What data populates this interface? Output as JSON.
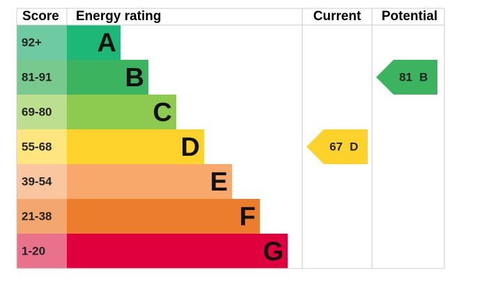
{
  "header": {
    "score": "Score",
    "rating": "Energy rating",
    "current": "Current",
    "potential": "Potential"
  },
  "bands": [
    {
      "score": "92+",
      "letter": "A",
      "color": "#1db777",
      "score_color": "#6ecaa1"
    },
    {
      "score": "81-91",
      "letter": "B",
      "color": "#3bb35f",
      "score_color": "#78c98d"
    },
    {
      "score": "69-80",
      "letter": "C",
      "color": "#8dcb50",
      "score_color": "#bbdf8f"
    },
    {
      "score": "55-68",
      "letter": "D",
      "color": "#fdd22b",
      "score_color": "#fee57d"
    },
    {
      "score": "39-54",
      "letter": "E",
      "color": "#f7a86a",
      "score_color": "#fac6a0"
    },
    {
      "score": "21-38",
      "letter": "F",
      "color": "#ec7d2c",
      "score_color": "#f3a66e"
    },
    {
      "score": "1-20",
      "letter": "G",
      "color": "#e0003d",
      "score_color": "#e9718b"
    }
  ],
  "current": {
    "value": 67,
    "letter": "D",
    "color": "#fdd22b"
  },
  "potential": {
    "value": 81,
    "letter": "B",
    "color": "#3bb35f"
  }
}
